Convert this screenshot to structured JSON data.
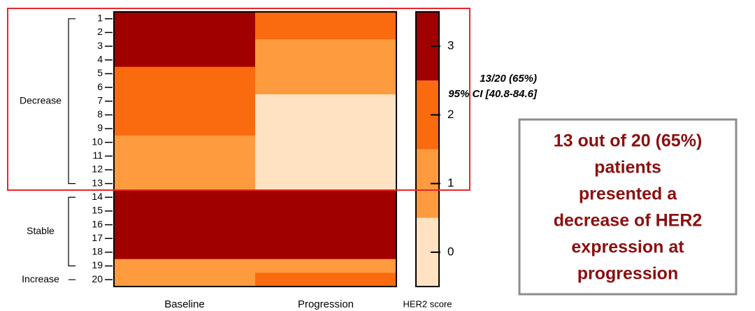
{
  "chart_data": {
    "type": "heatmap",
    "categories": [
      1,
      2,
      3,
      4,
      5,
      6,
      7,
      8,
      9,
      10,
      11,
      12,
      13,
      14,
      15,
      16,
      17,
      18,
      19,
      20
    ],
    "series": [
      {
        "name": "Baseline",
        "values": [
          3,
          3,
          3,
          3,
          2,
          2,
          2,
          2,
          2,
          1,
          1,
          1,
          1,
          3,
          3,
          3,
          3,
          3,
          1,
          1
        ]
      },
      {
        "name": "Progression",
        "values": [
          2,
          2,
          1,
          1,
          1,
          1,
          0,
          0,
          0,
          0,
          0,
          0,
          0,
          3,
          3,
          3,
          3,
          3,
          1,
          2
        ]
      }
    ],
    "colors": [
      "#fee2c2",
      "#fd9b3e",
      "#fa6a0e",
      "#a10000"
    ],
    "clim": [
      -0.5,
      3.5
    ],
    "cticks": [
      0,
      1,
      2,
      3
    ],
    "colorbar_label": "HER2 score",
    "groups": [
      {
        "label": "Decrease",
        "rows": [
          1,
          13
        ]
      },
      {
        "label": "Stable",
        "rows": [
          14,
          19
        ]
      },
      {
        "label": "Increase",
        "rows": [
          20,
          20
        ]
      }
    ],
    "annotations": [
      "13/20 (65%)",
      "95% CI [40.8-84.6]"
    ],
    "callout": [
      "13 out of 20 (65%)",
      "patients",
      "presented a",
      "decrease of HER2",
      "expression at",
      "progression"
    ]
  }
}
